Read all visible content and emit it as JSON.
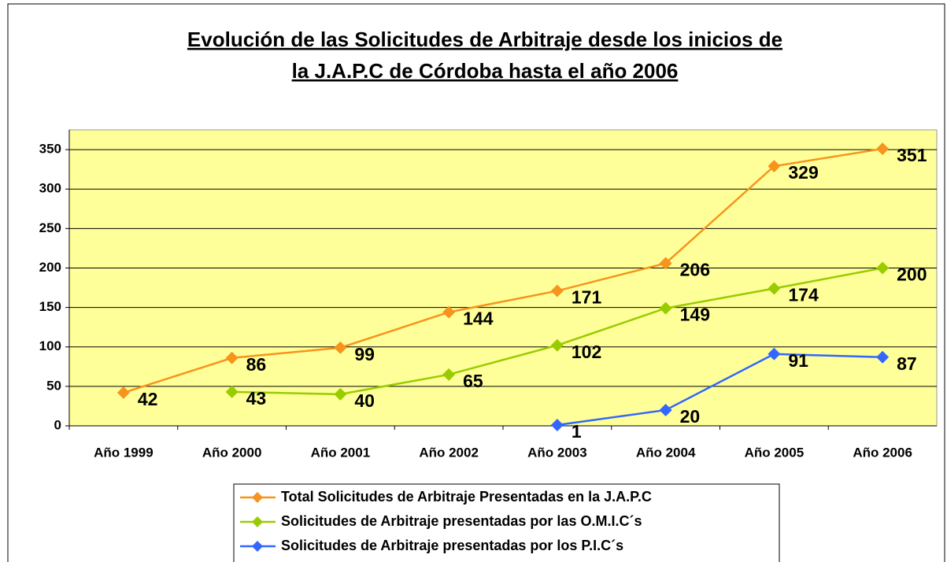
{
  "chart_data": {
    "type": "line",
    "title": [
      "Evolución de las Solicitudes de Arbitraje desde los inicios de",
      "la J.A.P.C de Córdoba hasta el año 2006"
    ],
    "categories": [
      "Año 1999",
      "Año 2000",
      "Año 2001",
      "Año 2002",
      "Año 2003",
      "Año 2004",
      "Año 2005",
      "Año 2006"
    ],
    "series": [
      {
        "name": "Total Solicitudes de Arbitraje Presentadas en la J.A.P.C",
        "color": "#f7941d",
        "values": [
          42,
          86,
          99,
          144,
          171,
          206,
          329,
          351
        ]
      },
      {
        "name": "Solicitudes de Arbitraje presentadas por las O.M.I.C´s",
        "color": "#99cc00",
        "values": [
          null,
          43,
          40,
          65,
          102,
          149,
          174,
          200
        ]
      },
      {
        "name": "Solicitudes de Arbitraje presentadas por los P.I.C´s",
        "color": "#3366ff",
        "values": [
          null,
          null,
          null,
          null,
          1,
          20,
          91,
          87
        ]
      }
    ],
    "ylim": [
      0,
      375
    ],
    "yticks": [
      0,
      50,
      100,
      150,
      200,
      250,
      300,
      350
    ],
    "grid": true,
    "legend": "bottom"
  }
}
